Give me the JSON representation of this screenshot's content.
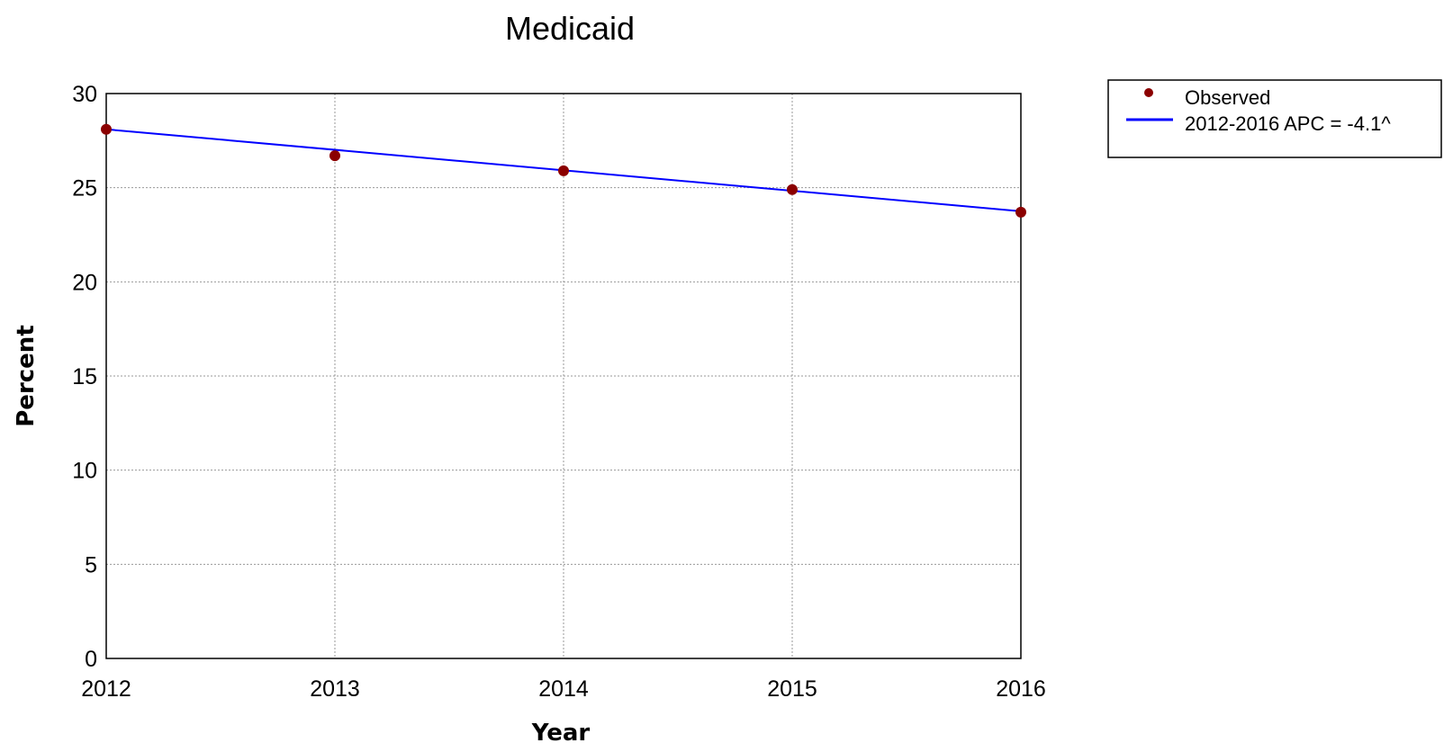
{
  "chart_data": {
    "type": "line",
    "title": "Medicaid",
    "xlabel": "Year",
    "ylabel": "Percent",
    "xlim": [
      2012,
      2016
    ],
    "ylim": [
      0,
      30
    ],
    "x_ticks": [
      "2012",
      "2013",
      "2014",
      "2015",
      "2016"
    ],
    "y_ticks": [
      "0",
      "5",
      "10",
      "15",
      "20",
      "25",
      "30"
    ],
    "grid": true,
    "legend_position": "top-right, outside plot",
    "series": [
      {
        "name": "Observed",
        "kind": "scatter",
        "color": "#8b0000",
        "points": [
          {
            "x": 2012,
            "y": 28.1
          },
          {
            "x": 2013,
            "y": 26.7
          },
          {
            "x": 2014,
            "y": 25.9
          },
          {
            "x": 2015,
            "y": 24.9
          },
          {
            "x": 2016,
            "y": 23.7
          }
        ]
      },
      {
        "name": "2012-2016 APC  = -4.1^",
        "kind": "line",
        "color": "#0000ff",
        "points": [
          {
            "x": 2012,
            "y": 28.1
          },
          {
            "x": 2016,
            "y": 23.75
          }
        ]
      }
    ]
  }
}
